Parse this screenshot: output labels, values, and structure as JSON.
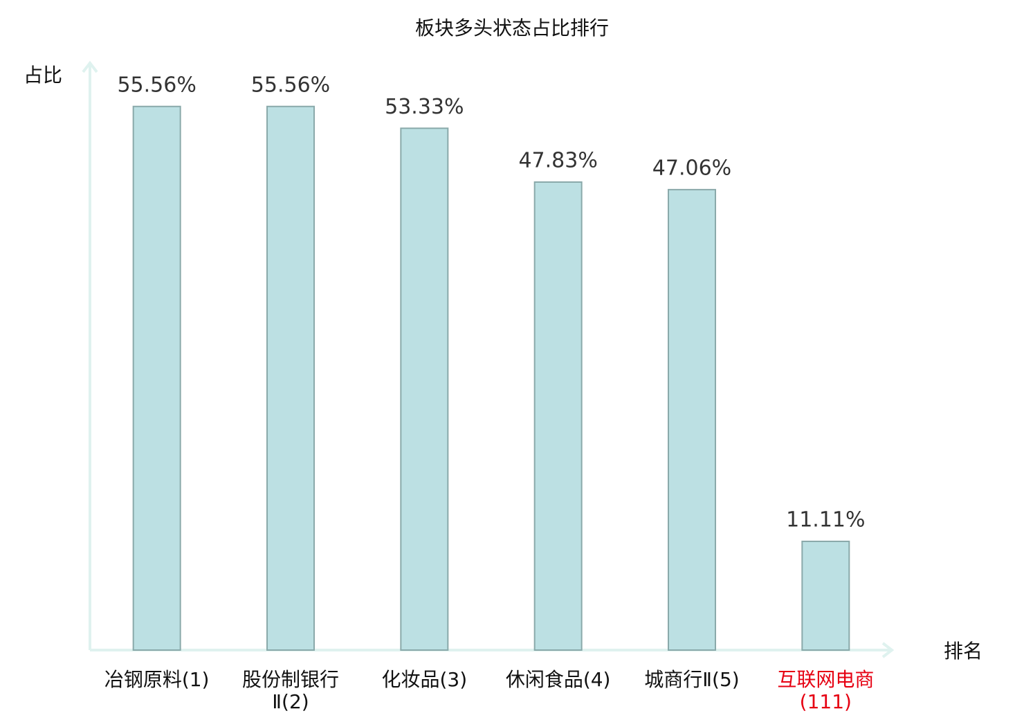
{
  "chart_data": {
    "type": "bar",
    "title": "板块多头状态占比排行",
    "x_label": "排名",
    "y_label": "占比",
    "categories": [
      "冶钢原料(1)",
      "股份制银行Ⅱ(2)",
      "化妆品(3)",
      "休闲食品(4)",
      "城商行Ⅱ(5)",
      "互联网电商(111)"
    ],
    "category_colors": [
      "#111111",
      "#111111",
      "#111111",
      "#111111",
      "#111111",
      "#e60012"
    ],
    "values": [
      55.56,
      55.56,
      53.33,
      47.83,
      47.06,
      11.11
    ],
    "value_labels": [
      "55.56%",
      "55.56%",
      "53.33%",
      "47.83%",
      "47.06%",
      "11.11%"
    ],
    "color": "#bce0e3",
    "ylim": [
      0,
      60
    ]
  }
}
